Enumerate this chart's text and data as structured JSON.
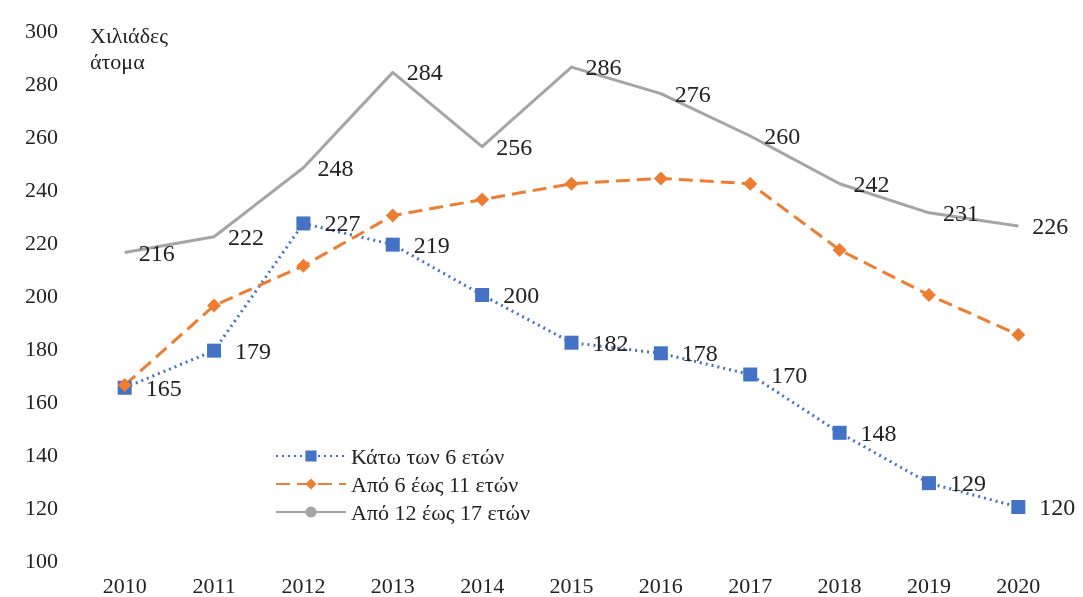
{
  "chart_data": {
    "type": "line",
    "ylabel": "Χιλιάδες άτομα",
    "categories": [
      "2010",
      "2011",
      "2012",
      "2013",
      "2014",
      "2015",
      "2016",
      "2017",
      "2018",
      "2019",
      "2020"
    ],
    "ylim": [
      100,
      300
    ],
    "yticks": [
      100,
      120,
      140,
      160,
      180,
      200,
      220,
      240,
      260,
      280,
      300
    ],
    "grid": false,
    "legend": "bottom",
    "series": [
      {
        "name": "Κάτω των 6 ετών",
        "color": "#4472c4",
        "marker": "square",
        "line_style": "dotted",
        "values": [
          165,
          179,
          227,
          219,
          200,
          182,
          178,
          170,
          148,
          129,
          120
        ],
        "value_labels": [
          "165",
          "179",
          "227",
          "219",
          "200",
          "182",
          "178",
          "170",
          "148",
          "129",
          "120"
        ]
      },
      {
        "name": "Από 6 έως 11 ετών",
        "color": "#ed7d31",
        "marker": "diamond",
        "line_style": "dashed",
        "values": [
          166,
          196,
          211,
          230,
          236,
          242,
          244,
          242,
          217,
          200,
          185
        ]
      },
      {
        "name": "Από 12 έως 17 ετών",
        "color": "#a5a5a5",
        "marker": "none",
        "line_style": "solid",
        "values": [
          216,
          222,
          248,
          284,
          256,
          286,
          276,
          260,
          242,
          231,
          226
        ],
        "value_labels": [
          "216",
          "222",
          "248",
          "284",
          "256",
          "286",
          "276",
          "260",
          "242",
          "231",
          "226"
        ]
      }
    ]
  }
}
